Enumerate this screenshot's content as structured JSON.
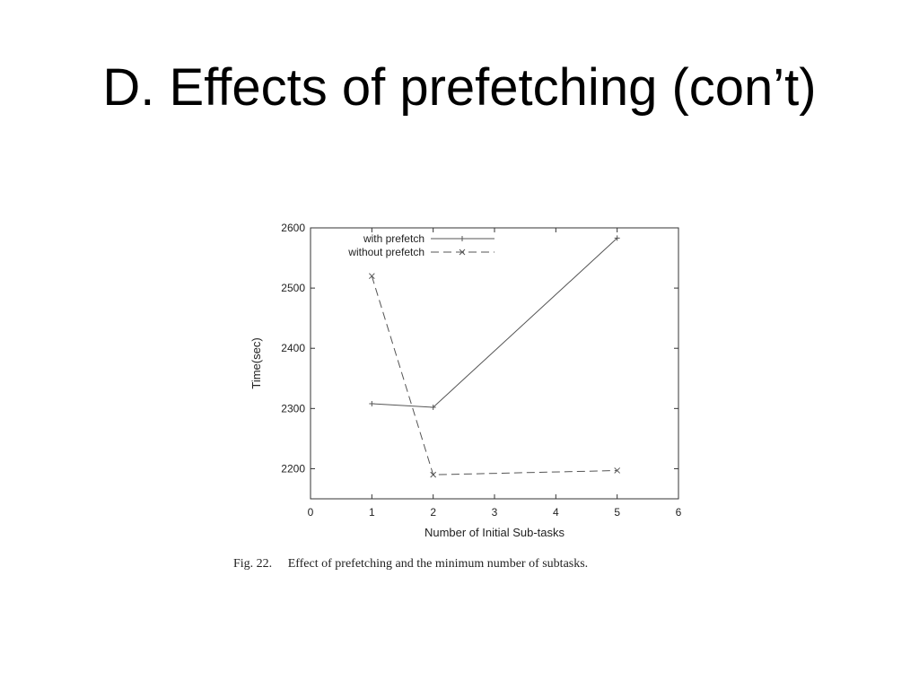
{
  "slide": {
    "title": "D. Effects of prefetching (con’t)"
  },
  "caption": {
    "figure_number": "Fig. 22.",
    "text": "Effect of prefetching and the minimum number of subtasks."
  },
  "chart_data": {
    "type": "line",
    "xlabel": "Number of Initial Sub-tasks",
    "ylabel": "Time(sec)",
    "xlim": [
      0,
      6
    ],
    "ylim": [
      2150,
      2600
    ],
    "xticks": [
      0,
      1,
      2,
      3,
      4,
      5,
      6
    ],
    "yticks": [
      2200,
      2300,
      2400,
      2500,
      2600
    ],
    "grid": false,
    "legend_position": "top-center",
    "series": [
      {
        "name": "with prefetch",
        "style": "solid",
        "marker": "plus",
        "color": "#555555",
        "x": [
          1,
          2,
          5
        ],
        "y": [
          2308,
          2302,
          2583
        ]
      },
      {
        "name": "without prefetch",
        "style": "dashed",
        "marker": "x",
        "color": "#555555",
        "x": [
          1,
          2,
          5
        ],
        "y": [
          2520,
          2190,
          2197
        ]
      }
    ]
  }
}
